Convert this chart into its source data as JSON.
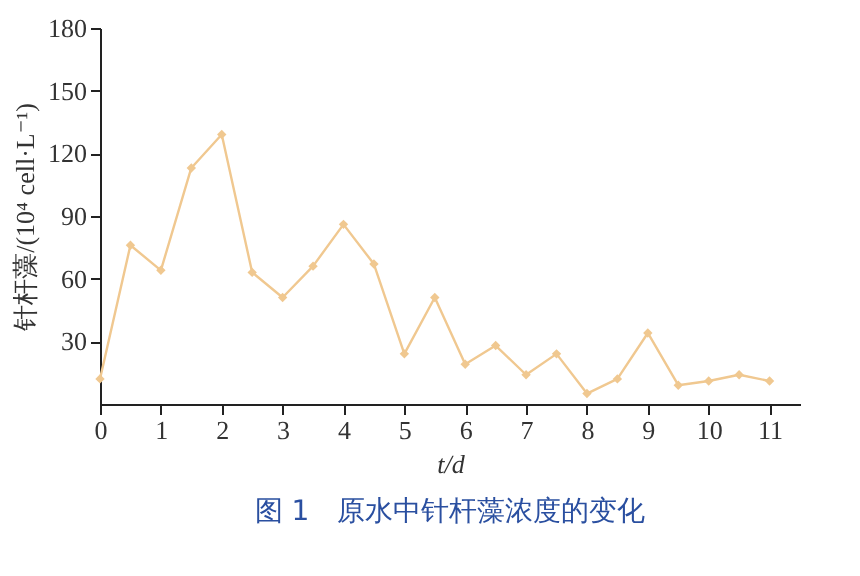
{
  "chart_data": {
    "type": "line",
    "title": "图 1　原水中针杆藻浓度的变化",
    "xlabel": "t/d",
    "ylabel": "针杆藻/(10⁴ cell·L⁻¹)",
    "x": [
      0,
      0.5,
      1,
      1.5,
      2,
      2.5,
      3,
      3.5,
      4,
      4.5,
      5,
      5.5,
      6,
      6.5,
      7,
      7.5,
      8,
      8.5,
      9,
      9.5,
      10,
      10.5,
      11
    ],
    "series": [
      {
        "color": "#f0c890",
        "values": [
          12,
          76,
          64,
          113,
          129,
          63,
          51,
          66,
          86,
          67,
          24,
          51,
          19,
          28,
          14,
          24,
          5,
          12,
          34,
          9,
          11,
          14,
          11
        ]
      }
    ],
    "xlim": [
      0,
      11.5
    ],
    "xticks": [
      0,
      1,
      2,
      3,
      4,
      5,
      6,
      7,
      8,
      9,
      10,
      11
    ],
    "ylim": [
      0,
      180
    ],
    "yticks": [
      30,
      60,
      90,
      120,
      150,
      180
    ],
    "grid": false,
    "legend": false,
    "marker": "diamond",
    "line_style": "solid"
  }
}
